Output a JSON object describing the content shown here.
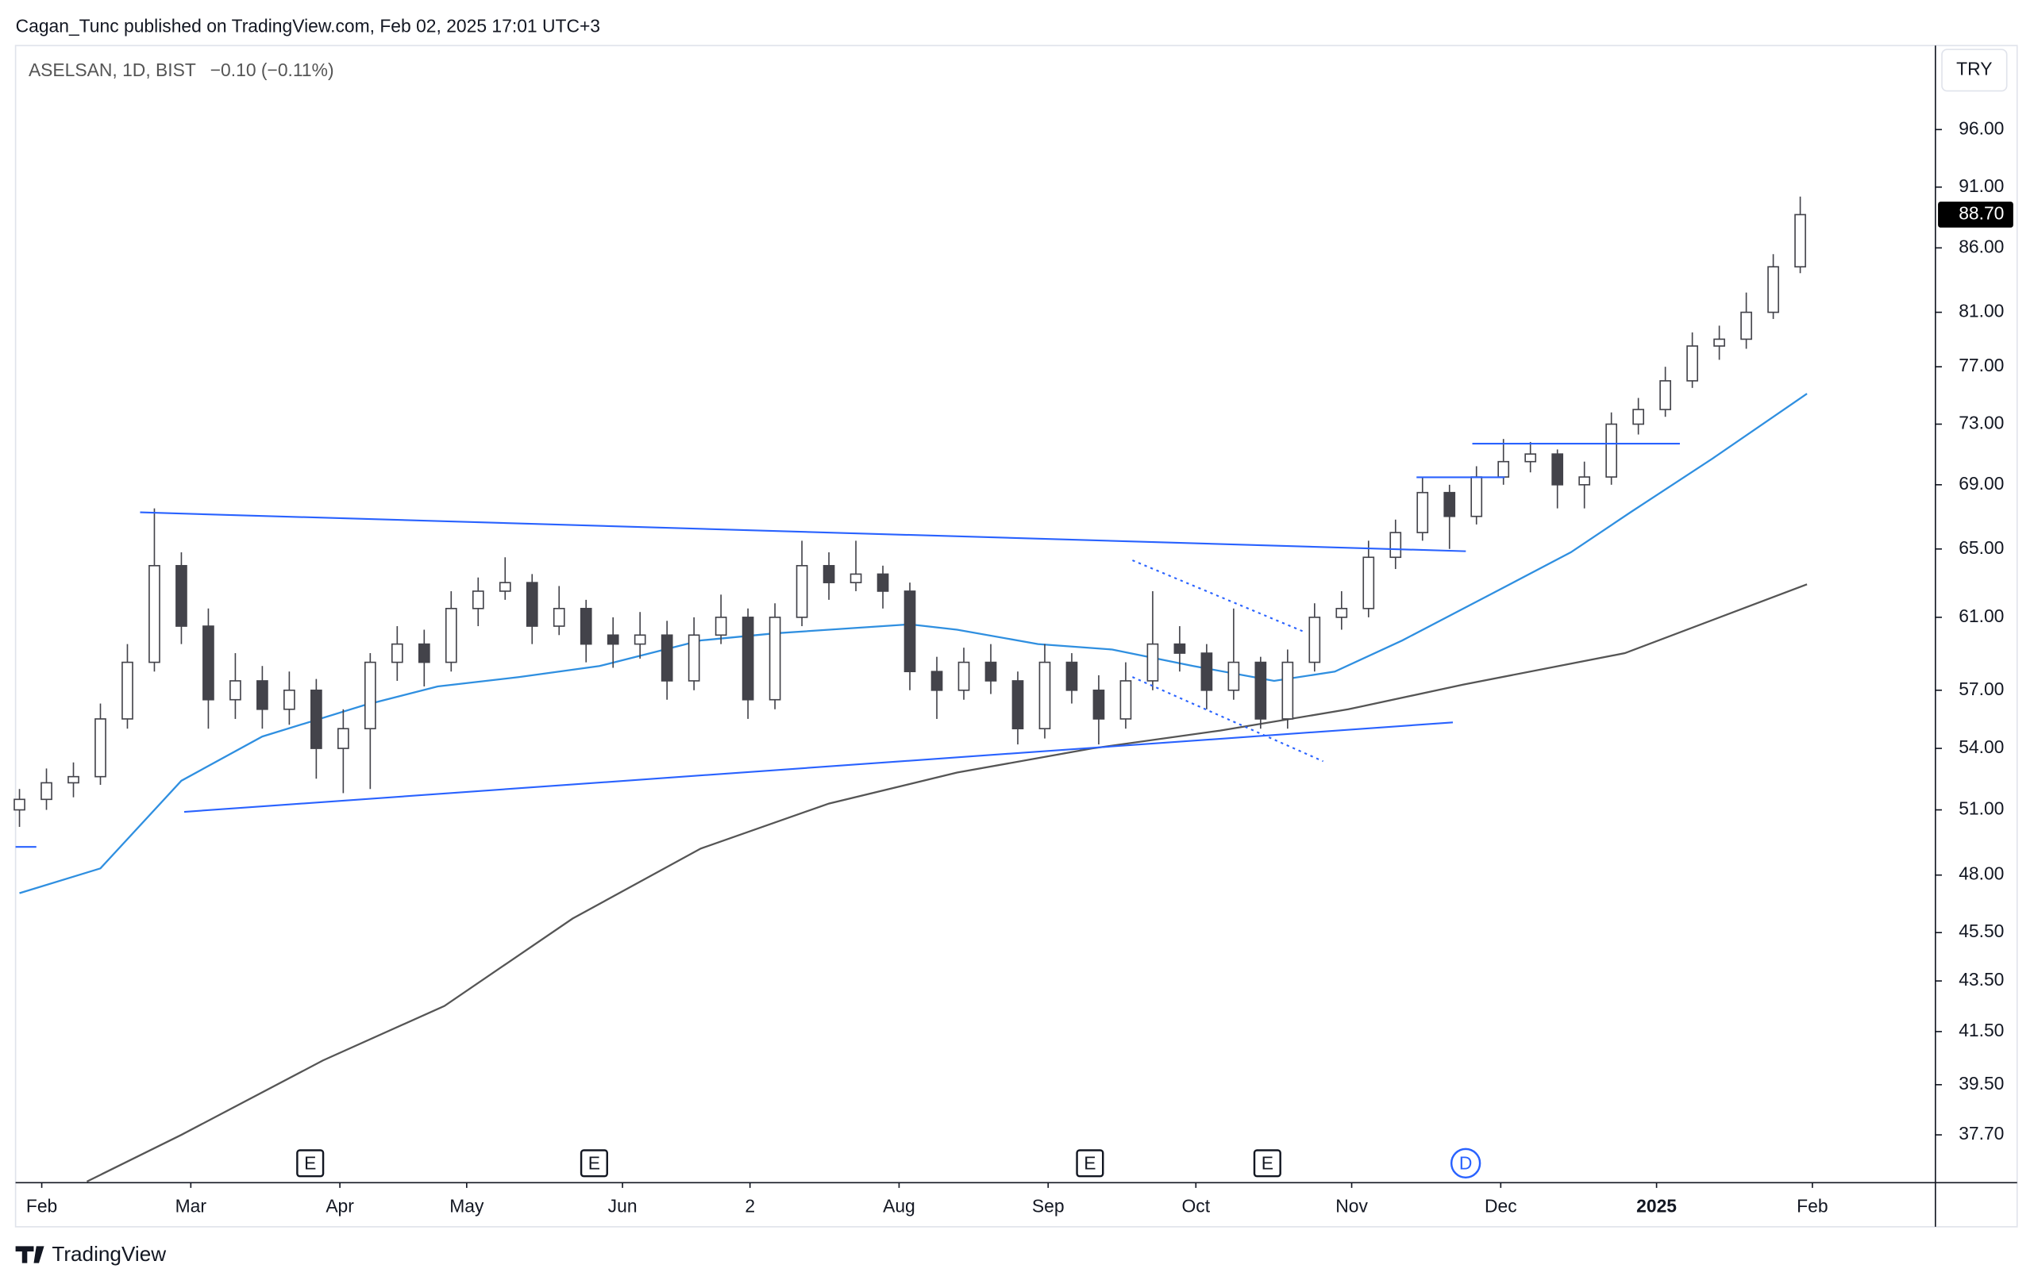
{
  "header": "Cagan_Tunc published on TradingView.com, Feb 02, 2025 17:01 UTC+3",
  "footer": "TradingView",
  "chart_data": {
    "type": "candlestick",
    "title": "ASELSAN, 1D, BIST",
    "change": "−0.10 (−0.11%)",
    "currency": "TRY",
    "log_scale": true,
    "x": [
      0,
      4,
      8,
      12,
      16,
      20,
      24,
      28,
      32,
      36,
      40,
      44,
      48,
      52,
      56,
      60,
      64,
      68,
      72,
      76,
      80,
      84,
      88,
      92,
      96,
      100,
      104,
      108,
      112,
      116,
      120,
      124,
      128,
      132,
      136,
      140,
      144,
      148,
      152,
      156,
      160,
      164,
      168,
      172,
      176,
      180,
      184,
      188,
      192,
      196,
      200,
      204,
      208,
      212,
      216,
      220,
      224,
      228,
      232,
      236,
      240,
      244,
      248,
      252,
      256,
      260,
      264
    ],
    "open": [
      51,
      51.5,
      52.3,
      52.6,
      55.5,
      58.5,
      64,
      60.5,
      56.5,
      57.5,
      56,
      57,
      54,
      55,
      58.5,
      59.5,
      58.5,
      61.5,
      62.5,
      63,
      60.5,
      61.5,
      60,
      59.5,
      60,
      57.5,
      60,
      61,
      56.5,
      61,
      64,
      63,
      63.5,
      62.5,
      58,
      57,
      58.5,
      57.5,
      55,
      58.5,
      57,
      55.5,
      57.5,
      59.5,
      59,
      57,
      58.5,
      55.5,
      58.5,
      61,
      61.5,
      64.5,
      66,
      68.5,
      67,
      69.5,
      70.5,
      71,
      69,
      69.5,
      73,
      74,
      76,
      78.5,
      79,
      81,
      84.5
    ],
    "high": [
      52,
      53,
      53.3,
      56.3,
      59.5,
      67.5,
      64.8,
      61.5,
      59,
      58.3,
      58,
      57.6,
      56,
      59,
      60.5,
      60.3,
      62.5,
      63.3,
      64.5,
      63.5,
      62.8,
      62,
      61,
      61.3,
      60.8,
      61,
      62.3,
      61.5,
      61.8,
      65.5,
      64.8,
      65.5,
      64,
      63,
      58.8,
      59.3,
      59.5,
      58,
      59.5,
      59,
      57.8,
      58.5,
      62.5,
      60.5,
      59.5,
      61.5,
      58.8,
      59.2,
      61.8,
      62.5,
      65.5,
      66.8,
      69.5,
      69,
      70.2,
      72,
      71.8,
      71.3,
      70.5,
      73.8,
      74.8,
      77,
      79.5,
      80,
      82.5,
      85.5,
      90.2
    ],
    "low": [
      50.2,
      51,
      51.6,
      52.2,
      55,
      58,
      59.5,
      55,
      55.5,
      55,
      55.2,
      52.5,
      51.8,
      52,
      57.5,
      57.2,
      58,
      60.5,
      62,
      59.5,
      60,
      58.5,
      58.2,
      58.7,
      56.5,
      57,
      59.5,
      55.5,
      56,
      60.5,
      62,
      62.5,
      61.5,
      57,
      55.5,
      56.5,
      56.8,
      54.2,
      54.5,
      56.3,
      54.2,
      55,
      57,
      58,
      56,
      56.5,
      55,
      55,
      58,
      60.3,
      61,
      63.8,
      65.5,
      65,
      66.5,
      69,
      69.8,
      67.5,
      67.5,
      69,
      72.3,
      73.5,
      75.5,
      77.5,
      78.3,
      80.5,
      84
    ],
    "close": [
      51.5,
      52.3,
      52.6,
      55.5,
      58.5,
      64,
      60.5,
      56.5,
      57.5,
      56,
      57,
      54,
      55,
      58.5,
      59.5,
      58.5,
      61.5,
      62.5,
      63,
      60.5,
      61.5,
      59.5,
      59.5,
      60,
      57.5,
      60,
      61,
      56.5,
      61,
      64,
      63,
      63.5,
      62.5,
      58,
      57,
      58.5,
      57.5,
      55,
      58.5,
      57,
      55.5,
      57.5,
      59.5,
      59,
      57,
      58.5,
      55.5,
      58.5,
      61,
      61.5,
      64.5,
      66,
      68.5,
      67,
      69.5,
      70.5,
      71,
      69,
      69.5,
      73,
      74,
      76,
      78.5,
      79,
      81,
      84.5,
      88.7
    ],
    "up_color": "#ffffff",
    "down_color": "#43434a",
    "wick_color": "#43434a",
    "series": [
      {
        "color": "#2f8fe0",
        "x": [
          0,
          12,
          24,
          36,
          51,
          62,
          74,
          86,
          101,
          112,
          132,
          139,
          151,
          162,
          174,
          186,
          195,
          205,
          218,
          230,
          239,
          251,
          265
        ],
        "values": [
          47.2,
          48.3,
          52.4,
          54.6,
          56.2,
          57.2,
          57.7,
          58.3,
          59.7,
          60.1,
          60.6,
          60.3,
          59.5,
          59.2,
          58.3,
          57.5,
          58,
          59.7,
          62.3,
          64.8,
          67.3,
          70.7,
          75.1
        ]
      },
      {
        "color": "#555555",
        "x": [
          10,
          24,
          45,
          63,
          82,
          101,
          120,
          139,
          159,
          178,
          197,
          214,
          238,
          265
        ],
        "values": [
          36.1,
          37.7,
          40.4,
          42.5,
          46.1,
          49.2,
          51.3,
          52.8,
          54,
          54.9,
          56,
          57.3,
          59,
          62.9
        ]
      }
    ],
    "price_label": {
      "value": 88.7,
      "label": "88.70"
    },
    "xlim": [
      -0.58,
      284.04
    ],
    "ylim": [
      36.06,
      103.8
    ],
    "yticks": [
      {
        "value": 37.7,
        "label": "37.70"
      },
      {
        "value": 39.5,
        "label": "39.50"
      },
      {
        "value": 41.5,
        "label": "41.50"
      },
      {
        "value": 43.5,
        "label": "43.50"
      },
      {
        "value": 45.5,
        "label": "45.50"
      },
      {
        "value": 48,
        "label": "48.00"
      },
      {
        "value": 51,
        "label": "51.00"
      },
      {
        "value": 54,
        "label": "54.00"
      },
      {
        "value": 57,
        "label": "57.00"
      },
      {
        "value": 61,
        "label": "61.00"
      },
      {
        "value": 65,
        "label": "65.00"
      },
      {
        "value": 69,
        "label": "69.00"
      },
      {
        "value": 73,
        "label": "73.00"
      },
      {
        "value": 77,
        "label": "77.00"
      },
      {
        "value": 81,
        "label": "81.00"
      },
      {
        "value": 86,
        "label": "86.00"
      },
      {
        "value": 91,
        "label": "91.00"
      },
      {
        "value": 96,
        "label": "96.00"
      }
    ],
    "xticks": [
      {
        "value": 3.3,
        "label": "Feb"
      },
      {
        "value": 25.4,
        "label": "Mar"
      },
      {
        "value": 47.5,
        "label": "Apr"
      },
      {
        "value": 66.3,
        "label": "May"
      },
      {
        "value": 89.4,
        "label": "Jun"
      },
      {
        "value": 108.3,
        "label": "2"
      },
      {
        "value": 130.4,
        "label": "Aug"
      },
      {
        "value": 152.5,
        "label": "Sep"
      },
      {
        "value": 174.4,
        "label": "Oct"
      },
      {
        "value": 197.5,
        "label": "Nov"
      },
      {
        "value": 219.6,
        "label": "Dec"
      },
      {
        "value": 242.7,
        "label": "2025"
      },
      {
        "value": 265.8,
        "label": "Feb"
      }
    ],
    "events": [
      {
        "x": 43.1,
        "label": "E"
      },
      {
        "x": 85.2,
        "label": "E"
      },
      {
        "x": 158.7,
        "label": "E"
      },
      {
        "x": 185,
        "label": "E"
      },
      {
        "x": 214.4,
        "label": "D"
      }
    ]
  }
}
